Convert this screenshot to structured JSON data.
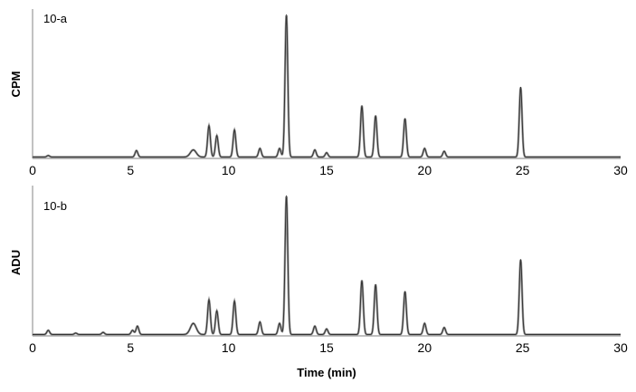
{
  "chart_data": [
    {
      "type": "line",
      "panel_label": "10-a",
      "ylabel": "CPM",
      "xlabel": "",
      "xlim": [
        0,
        30
      ],
      "x_ticks": [
        0,
        5,
        10,
        15,
        20,
        25,
        30
      ],
      "y_ticks_shown": false,
      "ylim": [
        0,
        1
      ],
      "grid": false,
      "legend": "none",
      "baseline": 0.01,
      "colors": {
        "trace": "#333333",
        "axis": "#999999"
      },
      "peaks": [
        {
          "rt": 0.8,
          "height": 0.01
        },
        {
          "rt": 5.3,
          "height": 0.045
        },
        {
          "rt": 8.2,
          "height": 0.05
        },
        {
          "rt": 9.0,
          "height": 0.22
        },
        {
          "rt": 9.4,
          "height": 0.15
        },
        {
          "rt": 10.3,
          "height": 0.19
        },
        {
          "rt": 11.6,
          "height": 0.06
        },
        {
          "rt": 12.6,
          "height": 0.06
        },
        {
          "rt": 12.95,
          "height": 1.0
        },
        {
          "rt": 14.4,
          "height": 0.05
        },
        {
          "rt": 15.0,
          "height": 0.03
        },
        {
          "rt": 16.8,
          "height": 0.36
        },
        {
          "rt": 17.5,
          "height": 0.29
        },
        {
          "rt": 19.0,
          "height": 0.27
        },
        {
          "rt": 20.0,
          "height": 0.06
        },
        {
          "rt": 21.0,
          "height": 0.04
        },
        {
          "rt": 24.9,
          "height": 0.49
        }
      ]
    },
    {
      "type": "line",
      "panel_label": "10-b",
      "ylabel": "ADU",
      "xlabel": "Time (min)",
      "xlim": [
        0,
        30
      ],
      "x_ticks": [
        0,
        5,
        10,
        15,
        20,
        25,
        30
      ],
      "y_ticks_shown": false,
      "ylim": [
        0,
        1
      ],
      "grid": false,
      "legend": "none",
      "baseline": 0.01,
      "colors": {
        "trace": "#333333",
        "axis": "#999999"
      },
      "peaks": [
        {
          "rt": 0.8,
          "height": 0.03
        },
        {
          "rt": 2.2,
          "height": 0.01
        },
        {
          "rt": 3.6,
          "height": 0.015
        },
        {
          "rt": 5.1,
          "height": 0.03
        },
        {
          "rt": 5.35,
          "height": 0.06
        },
        {
          "rt": 8.2,
          "height": 0.08
        },
        {
          "rt": 9.0,
          "height": 0.25
        },
        {
          "rt": 9.4,
          "height": 0.17
        },
        {
          "rt": 10.3,
          "height": 0.24
        },
        {
          "rt": 11.6,
          "height": 0.09
        },
        {
          "rt": 12.6,
          "height": 0.08
        },
        {
          "rt": 12.95,
          "height": 1.0
        },
        {
          "rt": 14.4,
          "height": 0.06
        },
        {
          "rt": 15.0,
          "height": 0.04
        },
        {
          "rt": 16.8,
          "height": 0.39
        },
        {
          "rt": 17.5,
          "height": 0.36
        },
        {
          "rt": 19.0,
          "height": 0.31
        },
        {
          "rt": 20.0,
          "height": 0.08
        },
        {
          "rt": 21.0,
          "height": 0.05
        },
        {
          "rt": 24.9,
          "height": 0.54
        }
      ]
    }
  ]
}
